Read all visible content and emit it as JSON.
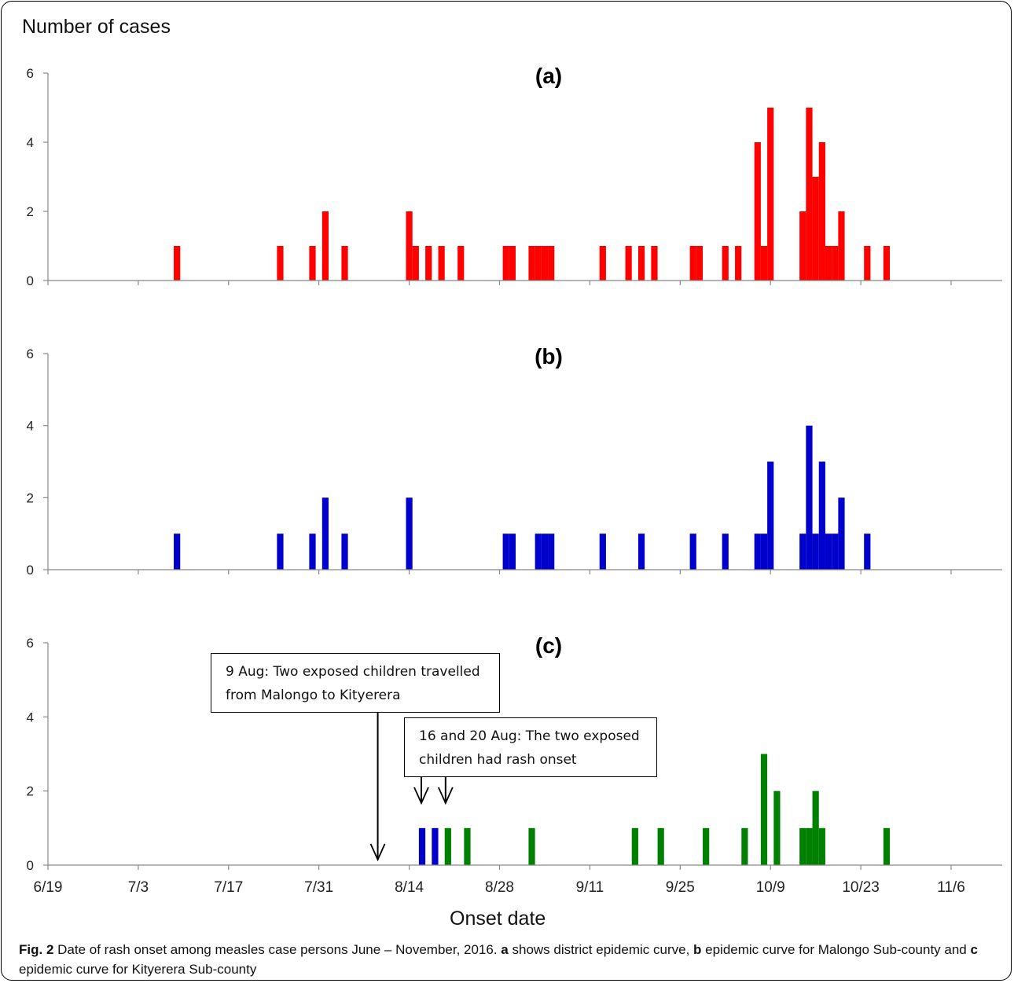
{
  "figure": {
    "y_axis_label": "Number of cases",
    "x_axis_label": "Onset date",
    "caption": {
      "label": "Fig. 2",
      "text1": " Date of rash onset among measles case persons June – November, 2016. ",
      "a": "a",
      "text2": " shows district epidemic curve, ",
      "b": "b",
      "text3": " epidemic curve for Malongo Sub-county and ",
      "c": "c",
      "text4": " epidemic curve for Kityerera Sub-county"
    }
  },
  "annotations": [
    {
      "line1": "9 Aug: Two exposed children travelled",
      "line2": "from Malongo to Kityerera",
      "arrow_dates": [
        "8/9"
      ]
    },
    {
      "line1": "16 and 20 Aug: The two exposed",
      "line2": "children had rash onset",
      "arrow_dates": [
        "8/16",
        "8/20"
      ]
    }
  ],
  "chart_data": [
    {
      "type": "bar",
      "title": "(a)",
      "xlabel": "Onset date",
      "ylabel": "Number of cases",
      "color": "#ff0000",
      "ylim": [
        0,
        6
      ],
      "yticks": [
        0,
        2,
        4,
        6
      ],
      "xlim": [
        "6/19",
        "11/15"
      ],
      "xticks": [
        "6/19",
        "7/3",
        "7/17",
        "7/31",
        "8/14",
        "8/28",
        "9/11",
        "9/25",
        "10/9",
        "10/23",
        "11/6"
      ],
      "bars": [
        {
          "x": "7/9",
          "y": 1
        },
        {
          "x": "7/25",
          "y": 1
        },
        {
          "x": "7/30",
          "y": 1
        },
        {
          "x": "8/1",
          "y": 2
        },
        {
          "x": "8/4",
          "y": 1
        },
        {
          "x": "8/14",
          "y": 2
        },
        {
          "x": "8/15",
          "y": 1
        },
        {
          "x": "8/17",
          "y": 1
        },
        {
          "x": "8/19",
          "y": 1
        },
        {
          "x": "8/22",
          "y": 1
        },
        {
          "x": "8/29",
          "y": 1
        },
        {
          "x": "8/30",
          "y": 1
        },
        {
          "x": "9/2",
          "y": 1
        },
        {
          "x": "9/3",
          "y": 1
        },
        {
          "x": "9/4",
          "y": 1
        },
        {
          "x": "9/5",
          "y": 1
        },
        {
          "x": "9/13",
          "y": 1
        },
        {
          "x": "9/17",
          "y": 1
        },
        {
          "x": "9/19",
          "y": 1
        },
        {
          "x": "9/21",
          "y": 1
        },
        {
          "x": "9/27",
          "y": 1
        },
        {
          "x": "9/28",
          "y": 1
        },
        {
          "x": "10/2",
          "y": 1
        },
        {
          "x": "10/4",
          "y": 1
        },
        {
          "x": "10/7",
          "y": 4
        },
        {
          "x": "10/8",
          "y": 1
        },
        {
          "x": "10/9",
          "y": 5
        },
        {
          "x": "10/14",
          "y": 2
        },
        {
          "x": "10/15",
          "y": 5
        },
        {
          "x": "10/16",
          "y": 3
        },
        {
          "x": "10/17",
          "y": 4
        },
        {
          "x": "10/18",
          "y": 1
        },
        {
          "x": "10/19",
          "y": 1
        },
        {
          "x": "10/20",
          "y": 2
        },
        {
          "x": "10/24",
          "y": 1
        },
        {
          "x": "10/27",
          "y": 1
        }
      ]
    },
    {
      "type": "bar",
      "title": "(b)",
      "xlabel": "Onset date",
      "ylabel": "Number of cases",
      "color": "#0000cc",
      "ylim": [
        0,
        6
      ],
      "yticks": [
        0,
        2,
        4,
        6
      ],
      "xlim": [
        "6/19",
        "11/15"
      ],
      "xticks": [
        "6/19",
        "7/3",
        "7/17",
        "7/31",
        "8/14",
        "8/28",
        "9/11",
        "9/25",
        "10/9",
        "10/23",
        "11/6"
      ],
      "bars": [
        {
          "x": "7/9",
          "y": 1
        },
        {
          "x": "7/25",
          "y": 1
        },
        {
          "x": "7/30",
          "y": 1
        },
        {
          "x": "8/1",
          "y": 2
        },
        {
          "x": "8/4",
          "y": 1
        },
        {
          "x": "8/14",
          "y": 2
        },
        {
          "x": "8/29",
          "y": 1
        },
        {
          "x": "8/30",
          "y": 1
        },
        {
          "x": "9/3",
          "y": 1
        },
        {
          "x": "9/4",
          "y": 1
        },
        {
          "x": "9/5",
          "y": 1
        },
        {
          "x": "9/13",
          "y": 1
        },
        {
          "x": "9/19",
          "y": 1
        },
        {
          "x": "9/27",
          "y": 1
        },
        {
          "x": "10/2",
          "y": 1
        },
        {
          "x": "10/7",
          "y": 1
        },
        {
          "x": "10/8",
          "y": 1
        },
        {
          "x": "10/9",
          "y": 3
        },
        {
          "x": "10/14",
          "y": 1
        },
        {
          "x": "10/15",
          "y": 4
        },
        {
          "x": "10/16",
          "y": 1
        },
        {
          "x": "10/17",
          "y": 3
        },
        {
          "x": "10/18",
          "y": 1
        },
        {
          "x": "10/19",
          "y": 1
        },
        {
          "x": "10/20",
          "y": 2
        },
        {
          "x": "10/24",
          "y": 1
        }
      ]
    },
    {
      "type": "bar",
      "title": "(c)",
      "xlabel": "Onset date",
      "ylabel": "Number of cases",
      "color": "#008000",
      "highlight_color": "#0000cc",
      "ylim": [
        0,
        6
      ],
      "yticks": [
        0,
        2,
        4,
        6
      ],
      "xlim": [
        "6/19",
        "11/15"
      ],
      "xticks": [
        "6/19",
        "7/3",
        "7/17",
        "7/31",
        "8/14",
        "8/28",
        "9/11",
        "9/25",
        "10/9",
        "10/23",
        "11/6"
      ],
      "bars": [
        {
          "x": "8/16",
          "y": 1,
          "color": "#0000cc"
        },
        {
          "x": "8/18",
          "y": 1,
          "color": "#0000cc"
        },
        {
          "x": "8/20",
          "y": 1
        },
        {
          "x": "8/23",
          "y": 1
        },
        {
          "x": "9/2",
          "y": 1
        },
        {
          "x": "9/18",
          "y": 1
        },
        {
          "x": "9/22",
          "y": 1
        },
        {
          "x": "9/29",
          "y": 1
        },
        {
          "x": "10/5",
          "y": 1
        },
        {
          "x": "10/8",
          "y": 3
        },
        {
          "x": "10/10",
          "y": 2
        },
        {
          "x": "10/14",
          "y": 1
        },
        {
          "x": "10/15",
          "y": 1
        },
        {
          "x": "10/16",
          "y": 2
        },
        {
          "x": "10/17",
          "y": 1
        },
        {
          "x": "10/27",
          "y": 1
        }
      ]
    }
  ]
}
